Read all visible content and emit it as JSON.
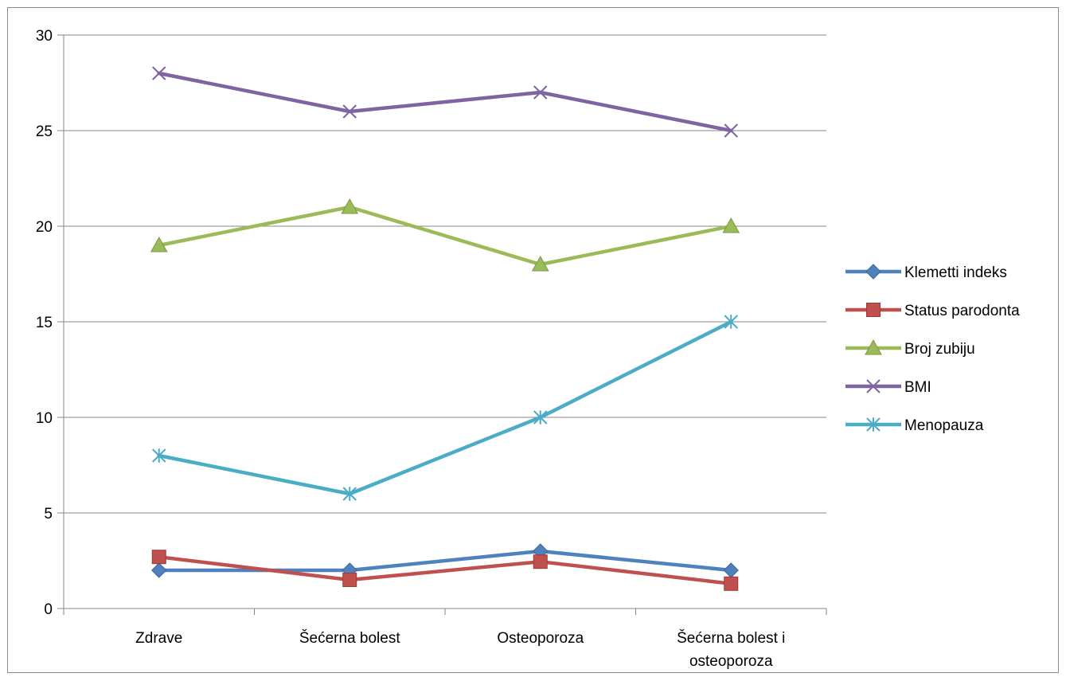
{
  "chart_data": {
    "type": "line",
    "title": "",
    "xlabel": "",
    "ylabel": "",
    "categories": [
      "Zdrave",
      "Šećerna bolest",
      "Osteoporoza",
      "Šećerna bolest i osteoporoza"
    ],
    "category_lines": [
      [
        "Zdrave"
      ],
      [
        "Šećerna bolest"
      ],
      [
        "Osteoporoza"
      ],
      [
        "Šećerna bolest i",
        "osteoporoza"
      ]
    ],
    "ylim": [
      0,
      30
    ],
    "yticks": [
      "0",
      "5",
      "10",
      "15",
      "20",
      "25",
      "30"
    ],
    "grid": true,
    "legend_position": "right",
    "series": [
      {
        "name": "Klemetti indeks",
        "values": [
          2,
          2,
          3,
          2
        ],
        "color": "#4f81bd",
        "marker": "diamond"
      },
      {
        "name": "Status parodonta",
        "values": [
          2.7,
          1.5,
          2.45,
          1.3
        ],
        "color": "#c0504d",
        "marker": "square"
      },
      {
        "name": "Broj zubiju",
        "values": [
          19,
          21,
          18,
          20
        ],
        "color": "#9bbb59",
        "marker": "triangle"
      },
      {
        "name": "BMI",
        "values": [
          28,
          26,
          27,
          25
        ],
        "color": "#8064a2",
        "marker": "x"
      },
      {
        "name": "Menopauza",
        "values": [
          8,
          6,
          10,
          15
        ],
        "color": "#4bacc6",
        "marker": "star"
      }
    ]
  }
}
